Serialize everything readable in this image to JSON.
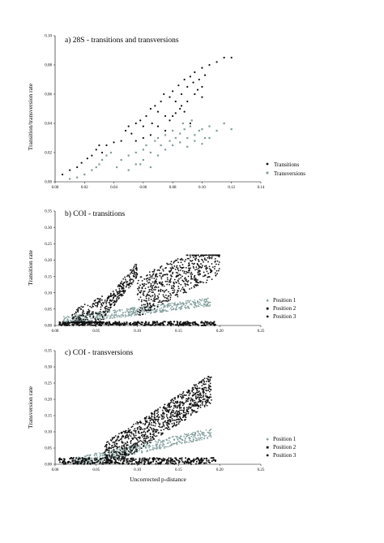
{
  "colors": {
    "black_series": "#111111",
    "grey_series": "#7f9c9a"
  },
  "chart_data": [
    {
      "type": "scatter",
      "title": "a) 28S - transitions and transversions",
      "xlabel": "",
      "ylabel": "Transition/transversion rate",
      "xlim": [
        0,
        0.14
      ],
      "ylim": [
        0,
        0.1
      ],
      "xticks": [
        "0.00",
        "0.02",
        "0.04",
        "0.06",
        "0.08",
        "0.10",
        "0.12",
        "0.14"
      ],
      "yticks": [
        "0.00",
        "0.02",
        "0.04",
        "0.06",
        "0.08",
        "0.10"
      ],
      "legend_position": "right",
      "series": [
        {
          "name": "Transitions",
          "marker": "dot",
          "color": "#111111",
          "points": [
            [
              0.005,
              0.005
            ],
            [
              0.01,
              0.008
            ],
            [
              0.015,
              0.01
            ],
            [
              0.018,
              0.013
            ],
            [
              0.022,
              0.016
            ],
            [
              0.025,
              0.018
            ],
            [
              0.028,
              0.022
            ],
            [
              0.03,
              0.025
            ],
            [
              0.032,
              0.02
            ],
            [
              0.035,
              0.025
            ],
            [
              0.04,
              0.027
            ],
            [
              0.045,
              0.028
            ],
            [
              0.048,
              0.035
            ],
            [
              0.05,
              0.038
            ],
            [
              0.052,
              0.033
            ],
            [
              0.055,
              0.04
            ],
            [
              0.058,
              0.042
            ],
            [
              0.06,
              0.038
            ],
            [
              0.062,
              0.045
            ],
            [
              0.065,
              0.05
            ],
            [
              0.066,
              0.04
            ],
            [
              0.068,
              0.052
            ],
            [
              0.07,
              0.048
            ],
            [
              0.072,
              0.055
            ],
            [
              0.074,
              0.06
            ],
            [
              0.075,
              0.045
            ],
            [
              0.078,
              0.058
            ],
            [
              0.08,
              0.062
            ],
            [
              0.082,
              0.055
            ],
            [
              0.084,
              0.066
            ],
            [
              0.086,
              0.06
            ],
            [
              0.088,
              0.07
            ],
            [
              0.09,
              0.065
            ],
            [
              0.092,
              0.072
            ],
            [
              0.094,
              0.068
            ],
            [
              0.095,
              0.075
            ],
            [
              0.098,
              0.07
            ],
            [
              0.1,
              0.078
            ],
            [
              0.102,
              0.073
            ],
            [
              0.105,
              0.08
            ],
            [
              0.11,
              0.082
            ],
            [
              0.115,
              0.085
            ],
            [
              0.12,
              0.085
            ],
            [
              0.09,
              0.055
            ],
            [
              0.085,
              0.05
            ],
            [
              0.095,
              0.06
            ],
            [
              0.07,
              0.038
            ],
            [
              0.075,
              0.035
            ],
            [
              0.08,
              0.045
            ],
            [
              0.088,
              0.048
            ],
            [
              0.1,
              0.065
            ],
            [
              0.092,
              0.04
            ],
            [
              0.065,
              0.032
            ],
            [
              0.06,
              0.03
            ],
            [
              0.055,
              0.028
            ],
            [
              0.078,
              0.042
            ],
            [
              0.082,
              0.047
            ],
            [
              0.086,
              0.052
            ],
            [
              0.1,
              0.058
            ],
            [
              0.097,
              0.063
            ]
          ]
        },
        {
          "name": "Transversions",
          "marker": "square",
          "color": "#7f9c9a",
          "points": [
            [
              0.01,
              0.002
            ],
            [
              0.015,
              0.003
            ],
            [
              0.02,
              0.005
            ],
            [
              0.025,
              0.008
            ],
            [
              0.028,
              0.01
            ],
            [
              0.03,
              0.012
            ],
            [
              0.032,
              0.015
            ],
            [
              0.035,
              0.018
            ],
            [
              0.038,
              0.02
            ],
            [
              0.042,
              0.01
            ],
            [
              0.045,
              0.015
            ],
            [
              0.05,
              0.018
            ],
            [
              0.055,
              0.02
            ],
            [
              0.058,
              0.012
            ],
            [
              0.06,
              0.022
            ],
            [
              0.062,
              0.025
            ],
            [
              0.065,
              0.02
            ],
            [
              0.068,
              0.028
            ],
            [
              0.07,
              0.03
            ],
            [
              0.072,
              0.025
            ],
            [
              0.075,
              0.032
            ],
            [
              0.078,
              0.028
            ],
            [
              0.08,
              0.035
            ],
            [
              0.082,
              0.03
            ],
            [
              0.085,
              0.033
            ],
            [
              0.088,
              0.036
            ],
            [
              0.09,
              0.03
            ],
            [
              0.092,
              0.038
            ],
            [
              0.095,
              0.032
            ],
            [
              0.098,
              0.035
            ],
            [
              0.1,
              0.036
            ],
            [
              0.102,
              0.03
            ],
            [
              0.105,
              0.038
            ],
            [
              0.11,
              0.035
            ],
            [
              0.115,
              0.04
            ],
            [
              0.12,
              0.036
            ],
            [
              0.065,
              0.01
            ],
            [
              0.07,
              0.018
            ],
            [
              0.075,
              0.022
            ],
            [
              0.08,
              0.025
            ],
            [
              0.085,
              0.027
            ],
            [
              0.09,
              0.024
            ],
            [
              0.095,
              0.028
            ],
            [
              0.1,
              0.026
            ],
            [
              0.105,
              0.03
            ],
            [
              0.06,
              0.015
            ],
            [
              0.055,
              0.012
            ],
            [
              0.05,
              0.008
            ],
            [
              0.087,
              0.04
            ],
            [
              0.093,
              0.042
            ]
          ]
        }
      ]
    },
    {
      "type": "scatter",
      "title": "b) COI - transitions",
      "xlabel": "",
      "ylabel": "Transition rate",
      "xlim": [
        0,
        0.25
      ],
      "ylim": [
        0,
        0.35
      ],
      "xticks": [
        "0.00",
        "0.05",
        "0.10",
        "0.15",
        "0.20",
        "0.25"
      ],
      "yticks": [
        "0.00",
        "0.05",
        "0.10",
        "0.15",
        "0.20",
        "0.25",
        "0.30",
        "0.35"
      ],
      "legend_position": "right",
      "series": [
        {
          "name": "Position 1",
          "marker": "diamond",
          "color": "#7f9c9a"
        },
        {
          "name": "Position 2",
          "marker": "square",
          "color": "#111111"
        },
        {
          "name": "Position 3",
          "marker": "dot",
          "color": "#111111"
        }
      ]
    },
    {
      "type": "scatter",
      "title": "c) COI - transversions",
      "xlabel": "Uncorrected p-distance",
      "ylabel": "Transversion rate",
      "xlim": [
        0,
        0.25
      ],
      "ylim": [
        0,
        0.35
      ],
      "xticks": [
        "0.00",
        "0.05",
        "0.10",
        "0.15",
        "0.20",
        "0.25"
      ],
      "yticks": [
        "0.00",
        "0.05",
        "0.10",
        "0.15",
        "0.20",
        "0.25",
        "0.30",
        "0.35"
      ],
      "legend_position": "right",
      "series": [
        {
          "name": "Position 1",
          "marker": "diamond",
          "color": "#7f9c9a"
        },
        {
          "name": "Position 2",
          "marker": "square",
          "color": "#111111"
        },
        {
          "name": "Position 3",
          "marker": "dot",
          "color": "#111111"
        }
      ]
    }
  ]
}
